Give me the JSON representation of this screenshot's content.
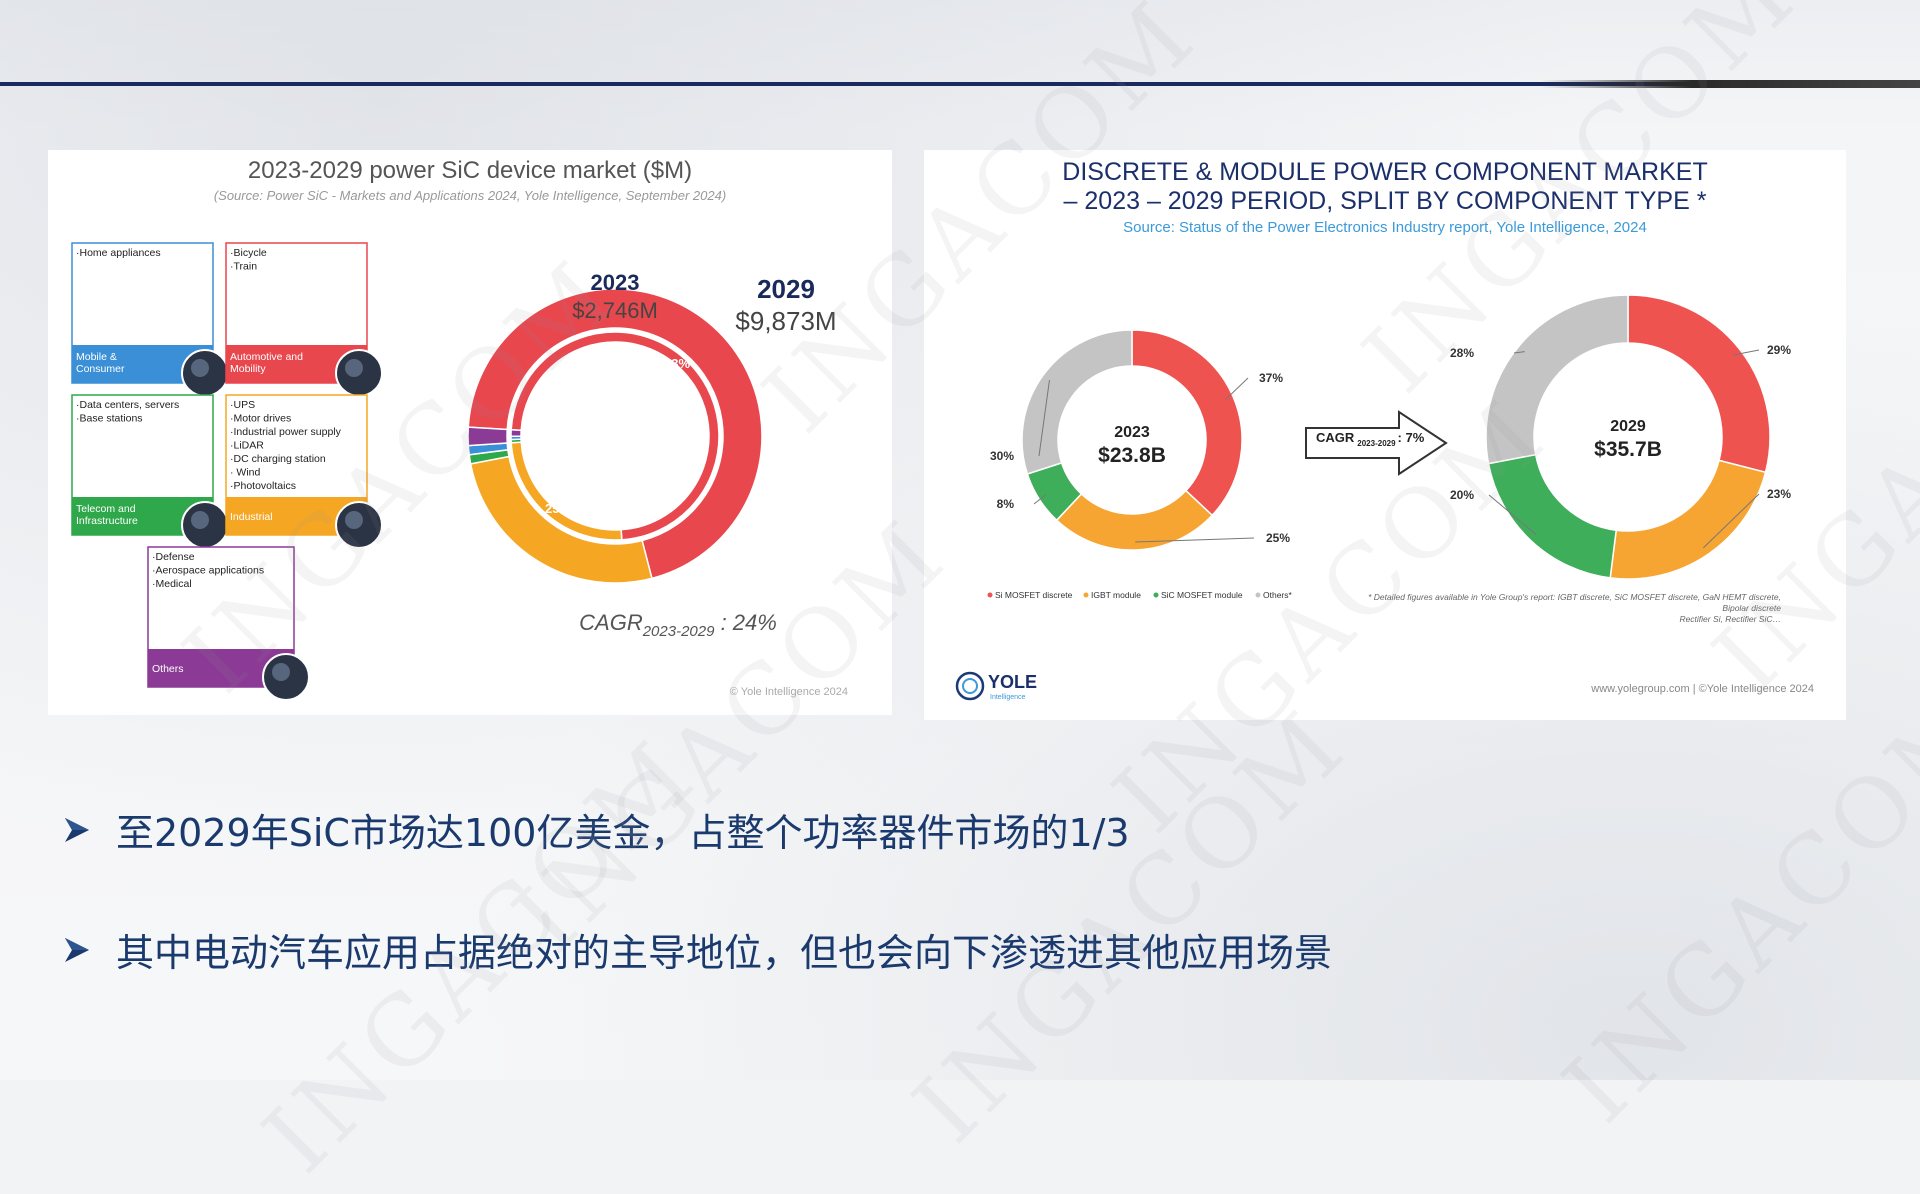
{
  "left_chart": {
    "title": "2023-2029 power SiC device market ($M)",
    "source": "(Source: Power SiC - Markets and Applications 2024, Yole Intelligence, September 2024)",
    "copyright": "© Yole Intelligence 2024",
    "cagr_prefix": "CAGR",
    "cagr_sub": "2023-2029",
    "cagr_value": " : 24%",
    "year_outer": "2029",
    "value_outer": "$9,873M",
    "year_inner": "2023",
    "value_inner": "$2,746M",
    "segments": [
      {
        "bullets": [
          "·Home appliances"
        ],
        "footer": [
          "Mobile &",
          "Consumer"
        ],
        "color": "#3a8fd6",
        "icon": "drone-icon"
      },
      {
        "bullets": [
          "·Bicycle",
          "·Train"
        ],
        "footer": [
          "Automotive and",
          "Mobility"
        ],
        "color": "#e8474e",
        "icon": "car-icon"
      },
      {
        "bullets": [
          "·Data centers, servers",
          "·Base stations"
        ],
        "footer": [
          "Telecom and",
          "Infrastructure"
        ],
        "color": "#2ea84a",
        "icon": "server-icon"
      },
      {
        "bullets": [
          "·UPS",
          "·Motor drives",
          "·Industrial power supply",
          "·LiDAR",
          "·DC charging station",
          "· Wind",
          "·Photovoltaics"
        ],
        "footer": [
          "Industrial"
        ],
        "color": "#f5a623",
        "icon": "wind-turbine-icon"
      },
      {
        "bullets": [
          "·Defense",
          "·Aerospace applications",
          "·Medical"
        ],
        "footer": [
          "Others"
        ],
        "color": "#8b3a96",
        "icon": "airplane-icon"
      }
    ]
  },
  "right_chart": {
    "title_line1": "DISCRETE & MODULE POWER COMPONENT MARKET",
    "title_line2": "– 2023 – 2029 PERIOD, SPLIT BY COMPONENT TYPE *",
    "source": "Source: Status of the Power Electronics Industry report, Yole Intelligence, 2024",
    "year_2023": "2023",
    "value_2023": "$23.8B",
    "year_2029": "2029",
    "value_2029": "$35.7B",
    "cagr_label": "CAGR",
    "cagr_sub": "2023-2029",
    "cagr_value": ": 7%",
    "footnote_1": "* Detailed figures available in Yole Group's report: IGBT discrete, SiC MOSFET discrete, GaN HEMT discrete,",
    "footnote_2": "Bipolar discrete",
    "footnote_3": "Rectifier Si, Rectifier SiC…",
    "logo_text": "YOLE",
    "logo_sub": "Intelligence",
    "site": "www.yolegroup.com | ©Yole Intelligence 2024"
  },
  "chart_data": [
    {
      "type": "pie",
      "title": "2023-2029 power SiC device market ($M)",
      "rings": [
        {
          "name": "2023",
          "total": "$2,746M",
          "slices": [
            {
              "label": "Automotive and Mobility",
              "value": 73,
              "color": "#e8474e"
            },
            {
              "label": "Industrial",
              "value": 25,
              "color": "#f5a623"
            },
            {
              "label": "Telecom and Infrastructure",
              "value": 0.5,
              "color": "#2ea84a"
            },
            {
              "label": "Mobile & Consumer",
              "value": 0.5,
              "color": "#3a8fd6"
            },
            {
              "label": "Others",
              "value": 1,
              "color": "#8b3a96"
            }
          ]
        },
        {
          "name": "2029",
          "total": "$9,873M",
          "slices": [
            {
              "label": "Automotive and Mobility",
              "value": 70,
              "color": "#e8474e"
            },
            {
              "label": "Industrial",
              "value": 26,
              "color": "#f5a623"
            },
            {
              "label": "Telecom and Infrastructure",
              "value": 1,
              "color": "#2ea84a"
            },
            {
              "label": "Mobile & Consumer",
              "value": 1,
              "color": "#3a8fd6"
            },
            {
              "label": "Others",
              "value": 2,
              "color": "#8b3a96"
            }
          ]
        }
      ],
      "slice_labels": {
        "automotive": "73%",
        "industrial": "25%"
      }
    },
    {
      "type": "pie",
      "name": "2023",
      "total": "$23.8B",
      "slices": [
        {
          "label": "Si MOSFET discrete",
          "value": 37,
          "text": "37%",
          "color": "#ef5350"
        },
        {
          "label": "IGBT module",
          "value": 25,
          "text": "25%",
          "color": "#f7a532"
        },
        {
          "label": "SiC MOSFET module",
          "value": 8,
          "text": "8%",
          "color": "#3fae5a"
        },
        {
          "label": "Others*",
          "value": 30,
          "text": "30%",
          "color": "#c4c4c4"
        }
      ]
    },
    {
      "type": "pie",
      "name": "2029",
      "total": "$35.7B",
      "slices": [
        {
          "label": "Si MOSFET discrete",
          "value": 29,
          "text": "29%",
          "color": "#ef5350"
        },
        {
          "label": "IGBT module",
          "value": 23,
          "text": "23%",
          "color": "#f7a532"
        },
        {
          "label": "SiC MOSFET module",
          "value": 20,
          "text": "20%",
          "color": "#3fae5a"
        },
        {
          "label": "Others*",
          "value": 28,
          "text": "28%",
          "color": "#c4c4c4"
        }
      ]
    }
  ],
  "legend": [
    {
      "label": "Si MOSFET discrete",
      "color": "#ef5350"
    },
    {
      "label": "IGBT module",
      "color": "#f7a532"
    },
    {
      "label": "SiC MOSFET module",
      "color": "#3fae5a"
    },
    {
      "label": "Others*",
      "color": "#c4c4c4"
    }
  ],
  "bullets": [
    "至2029年SiC市场达100亿美金，占整个功率器件市场的1/3",
    "其中电动汽车应用占据绝对的主导地位，但也会向下渗透进其他应用场景"
  ],
  "watermark": "INGACOM"
}
